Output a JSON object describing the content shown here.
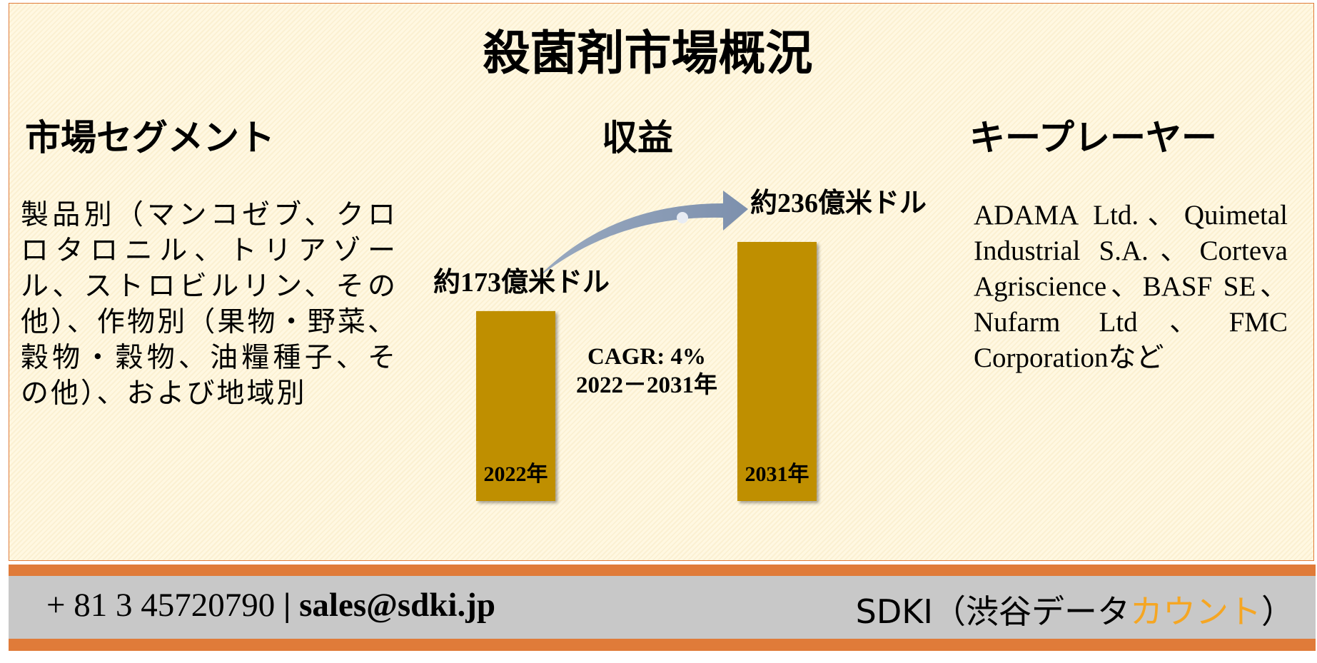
{
  "title": "殺菌剤市場概況",
  "segments": {
    "heading": "市場セグメント",
    "text": "製品別（マンコゼブ、クロロタロニル、トリアゾール、ストロビルリン、その他）、作物別（果物・野菜、穀物・穀物、油糧種子、その他）、および地域別"
  },
  "revenue": {
    "heading": "収益"
  },
  "players": {
    "heading": "キープレーヤー",
    "text": "ADAMA Ltd.、Quimetal Industrial S.A.、Corteva Agriscience、BASF SE、Nufarm Ltd、FMC Corporationなど"
  },
  "chart_data": {
    "type": "bar",
    "categories": [
      "2022年",
      "2031年"
    ],
    "values": [
      173,
      236
    ],
    "value_labels": [
      "約173億米ドル",
      "約236億米ドル"
    ],
    "color": "#bf8f00",
    "annotation": [
      "CAGR: 4%",
      "2022－2031年"
    ]
  },
  "footer": {
    "phone": "+ 81 3 45720790",
    "separator": "|",
    "email": "sales@sdki.jp",
    "brand": "SDKI（渋谷データ",
    "brand_highlight": "カウント",
    "brand_end": "）"
  }
}
